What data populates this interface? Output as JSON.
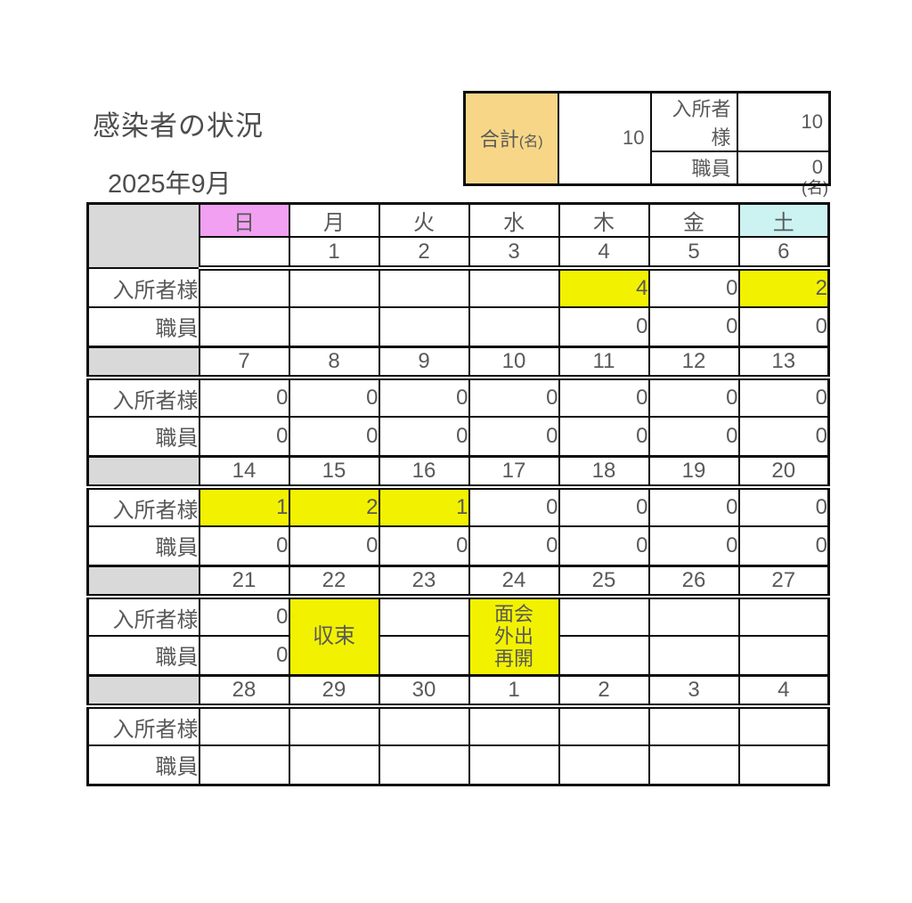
{
  "page": {
    "title": "感染者の状況",
    "month": "2025年9月",
    "unit_label": "(名)"
  },
  "summary": {
    "total_label": "合計",
    "total_unit": "(名)",
    "total_value": "10",
    "breakdown": [
      {
        "label": "入所者様",
        "value": "10"
      },
      {
        "label": "職員",
        "value": "0"
      }
    ]
  },
  "calendar": {
    "weekdays": [
      {
        "label": "日",
        "bg": "pink"
      },
      {
        "label": "月",
        "bg": "white"
      },
      {
        "label": "火",
        "bg": "white"
      },
      {
        "label": "水",
        "bg": "white"
      },
      {
        "label": "木",
        "bg": "white"
      },
      {
        "label": "金",
        "bg": "white"
      },
      {
        "label": "土",
        "bg": "cyan"
      }
    ],
    "row_labels": {
      "residents": "入所者様",
      "staff": "職員"
    },
    "weeks": [
      {
        "dates": [
          {
            "t": ""
          },
          {
            "t": "1"
          },
          {
            "t": "2"
          },
          {
            "t": "3"
          },
          {
            "t": "4"
          },
          {
            "t": "5"
          },
          {
            "t": "6",
            "c": "blue"
          }
        ],
        "residents": [
          {
            "t": ""
          },
          {
            "t": ""
          },
          {
            "t": ""
          },
          {
            "t": ""
          },
          {
            "t": "4",
            "bg": "yellow"
          },
          {
            "t": "0"
          },
          {
            "t": "2",
            "bg": "yellow"
          }
        ],
        "staff": [
          {
            "t": ""
          },
          {
            "t": ""
          },
          {
            "t": ""
          },
          {
            "t": ""
          },
          {
            "t": "0"
          },
          {
            "t": "0"
          },
          {
            "t": "0"
          }
        ]
      },
      {
        "dates": [
          {
            "t": "7",
            "c": "pink"
          },
          {
            "t": "8"
          },
          {
            "t": "9"
          },
          {
            "t": "10"
          },
          {
            "t": "11"
          },
          {
            "t": "12"
          },
          {
            "t": "13",
            "c": "blue"
          }
        ],
        "residents": [
          {
            "t": "0"
          },
          {
            "t": "0"
          },
          {
            "t": "0"
          },
          {
            "t": "0"
          },
          {
            "t": "0"
          },
          {
            "t": "0"
          },
          {
            "t": "0"
          }
        ],
        "staff": [
          {
            "t": "0"
          },
          {
            "t": "0"
          },
          {
            "t": "0"
          },
          {
            "t": "0"
          },
          {
            "t": "0"
          },
          {
            "t": "0"
          },
          {
            "t": "0"
          }
        ]
      },
      {
        "dates": [
          {
            "t": "14",
            "c": "pink"
          },
          {
            "t": "15",
            "c": "pink"
          },
          {
            "t": "16"
          },
          {
            "t": "17"
          },
          {
            "t": "18"
          },
          {
            "t": "19"
          },
          {
            "t": "20",
            "c": "blue"
          }
        ],
        "residents": [
          {
            "t": "1",
            "bg": "yellow"
          },
          {
            "t": "2",
            "bg": "yellow"
          },
          {
            "t": "1",
            "bg": "yellow"
          },
          {
            "t": "0"
          },
          {
            "t": "0"
          },
          {
            "t": "0"
          },
          {
            "t": "0"
          }
        ],
        "staff": [
          {
            "t": "0"
          },
          {
            "t": "0"
          },
          {
            "t": "0"
          },
          {
            "t": "0"
          },
          {
            "t": "0"
          },
          {
            "t": "0"
          },
          {
            "t": "0"
          }
        ]
      },
      {
        "dates": [
          {
            "t": "21",
            "c": "pink"
          },
          {
            "t": "22"
          },
          {
            "t": "23",
            "c": "pink"
          },
          {
            "t": "24"
          },
          {
            "t": "25"
          },
          {
            "t": "26"
          },
          {
            "t": "27"
          }
        ],
        "residents": [
          {
            "t": "0"
          },
          {
            "t": "収束",
            "bg": "yellow",
            "rs": 2
          },
          {
            "t": ""
          },
          {
            "t": "面会\n外出\n再開",
            "bg": "yellow",
            "rs": 2,
            "small": true
          },
          {
            "t": ""
          },
          {
            "t": ""
          },
          {
            "t": ""
          }
        ],
        "staff": [
          {
            "t": "0"
          },
          {
            "skip": true
          },
          {
            "t": ""
          },
          {
            "skip": true
          },
          {
            "t": ""
          },
          {
            "t": ""
          },
          {
            "t": ""
          }
        ]
      },
      {
        "dates": [
          {
            "t": "28",
            "c": "pink"
          },
          {
            "t": "29"
          },
          {
            "t": "30"
          },
          {
            "t": "1"
          },
          {
            "t": "2"
          },
          {
            "t": "3"
          },
          {
            "t": "4"
          }
        ],
        "residents": [
          {
            "t": ""
          },
          {
            "t": ""
          },
          {
            "t": ""
          },
          {
            "t": ""
          },
          {
            "t": ""
          },
          {
            "t": ""
          },
          {
            "t": ""
          }
        ],
        "staff": [
          {
            "t": ""
          },
          {
            "t": ""
          },
          {
            "t": ""
          },
          {
            "t": ""
          },
          {
            "t": ""
          },
          {
            "t": ""
          },
          {
            "t": ""
          }
        ]
      }
    ]
  },
  "colors": {
    "header-pink": "#F2A0F2",
    "header-cyan": "#CCF2F2",
    "highlight-yellow": "#F2F200",
    "summary-tan": "#F7D787",
    "cell-gray": "#D9D9D9",
    "text-gray": "#595959",
    "date-pink": "#EE3D8E",
    "date-blue": "#2E75B6",
    "border-black": "#0D0D0D"
  }
}
